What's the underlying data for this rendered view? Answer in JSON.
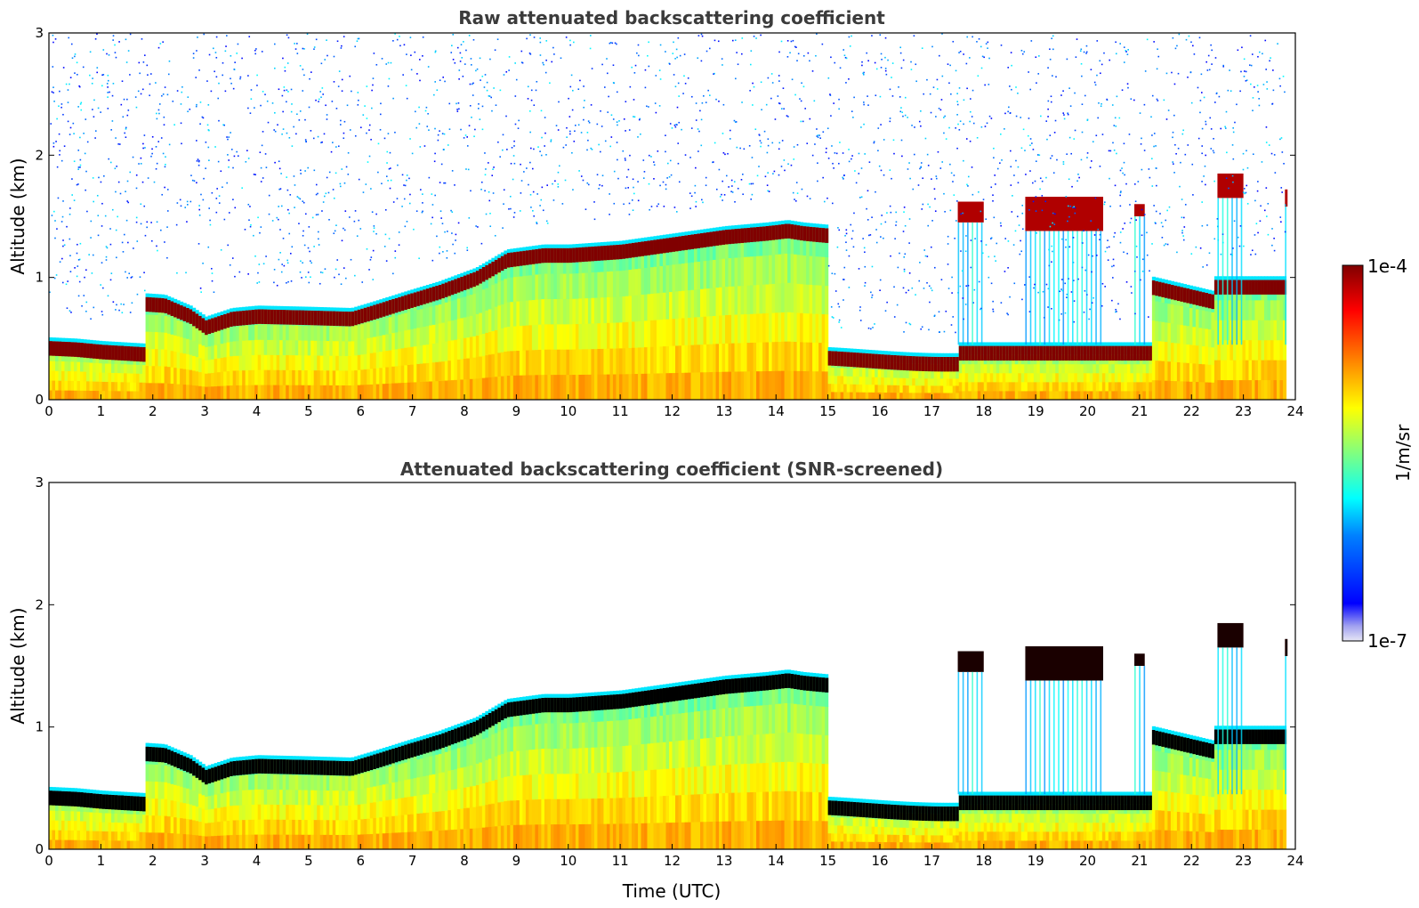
{
  "chart_data": [
    {
      "type": "heatmap",
      "title": "Raw attenuated backscattering coefficient",
      "xlabel": "",
      "ylabel": "Altitude (km)",
      "xlim": [
        0,
        24
      ],
      "ylim": [
        0,
        3
      ],
      "x_ticks": [
        "0",
        "1",
        "2",
        "3",
        "4",
        "5",
        "6",
        "7",
        "8",
        "9",
        "10",
        "11",
        "12",
        "13",
        "14",
        "15",
        "16",
        "17",
        "18",
        "19",
        "20",
        "21",
        "22",
        "23",
        "24"
      ],
      "y_ticks": [
        "0",
        "1",
        "2",
        "3"
      ],
      "screened": false,
      "layer_top_km": [
        [
          0,
          0.48
        ],
        [
          0.5,
          0.47
        ],
        [
          1,
          0.45
        ],
        [
          1.8,
          0.43
        ],
        [
          1.85,
          0.84
        ],
        [
          2.2,
          0.83
        ],
        [
          2.7,
          0.74
        ],
        [
          3,
          0.65
        ],
        [
          3.5,
          0.72
        ],
        [
          4,
          0.74
        ],
        [
          5,
          0.73
        ],
        [
          5.8,
          0.72
        ],
        [
          6.2,
          0.77
        ],
        [
          6.8,
          0.85
        ],
        [
          7.5,
          0.94
        ],
        [
          8.2,
          1.05
        ],
        [
          8.8,
          1.2
        ],
        [
          9.5,
          1.24
        ],
        [
          10,
          1.24
        ],
        [
          11,
          1.27
        ],
        [
          12,
          1.33
        ],
        [
          13,
          1.39
        ],
        [
          13.8,
          1.42
        ],
        [
          14.2,
          1.44
        ],
        [
          14.5,
          1.42
        ],
        [
          15,
          1.4
        ]
      ],
      "colorbar": {
        "min_label": "1e-7",
        "max_label": "1e-4",
        "unit": "1/m/sr"
      }
    },
    {
      "type": "heatmap",
      "title": "Attenuated backscattering coefficient (SNR-screened)",
      "xlabel": "Time (UTC)",
      "ylabel": "Altitude (km)",
      "xlim": [
        0,
        24
      ],
      "ylim": [
        0,
        3
      ],
      "x_ticks": [
        "0",
        "1",
        "2",
        "3",
        "4",
        "5",
        "6",
        "7",
        "8",
        "9",
        "10",
        "11",
        "12",
        "13",
        "14",
        "15",
        "16",
        "17",
        "18",
        "19",
        "20",
        "21",
        "22",
        "23",
        "24"
      ],
      "y_ticks": [
        "0",
        "1",
        "2",
        "3"
      ],
      "screened": true,
      "colorbar": {
        "min_label": "1e-7",
        "max_label": "1e-4",
        "unit": "1/m/sr"
      }
    }
  ],
  "colors": {
    "saturated": "#800000",
    "screened_saturated": "#000000",
    "jet_stops": [
      "#00008f",
      "#0000ff",
      "#0080ff",
      "#00ffff",
      "#80ff80",
      "#ffff00",
      "#ff8000",
      "#ff0000",
      "#800000"
    ]
  }
}
